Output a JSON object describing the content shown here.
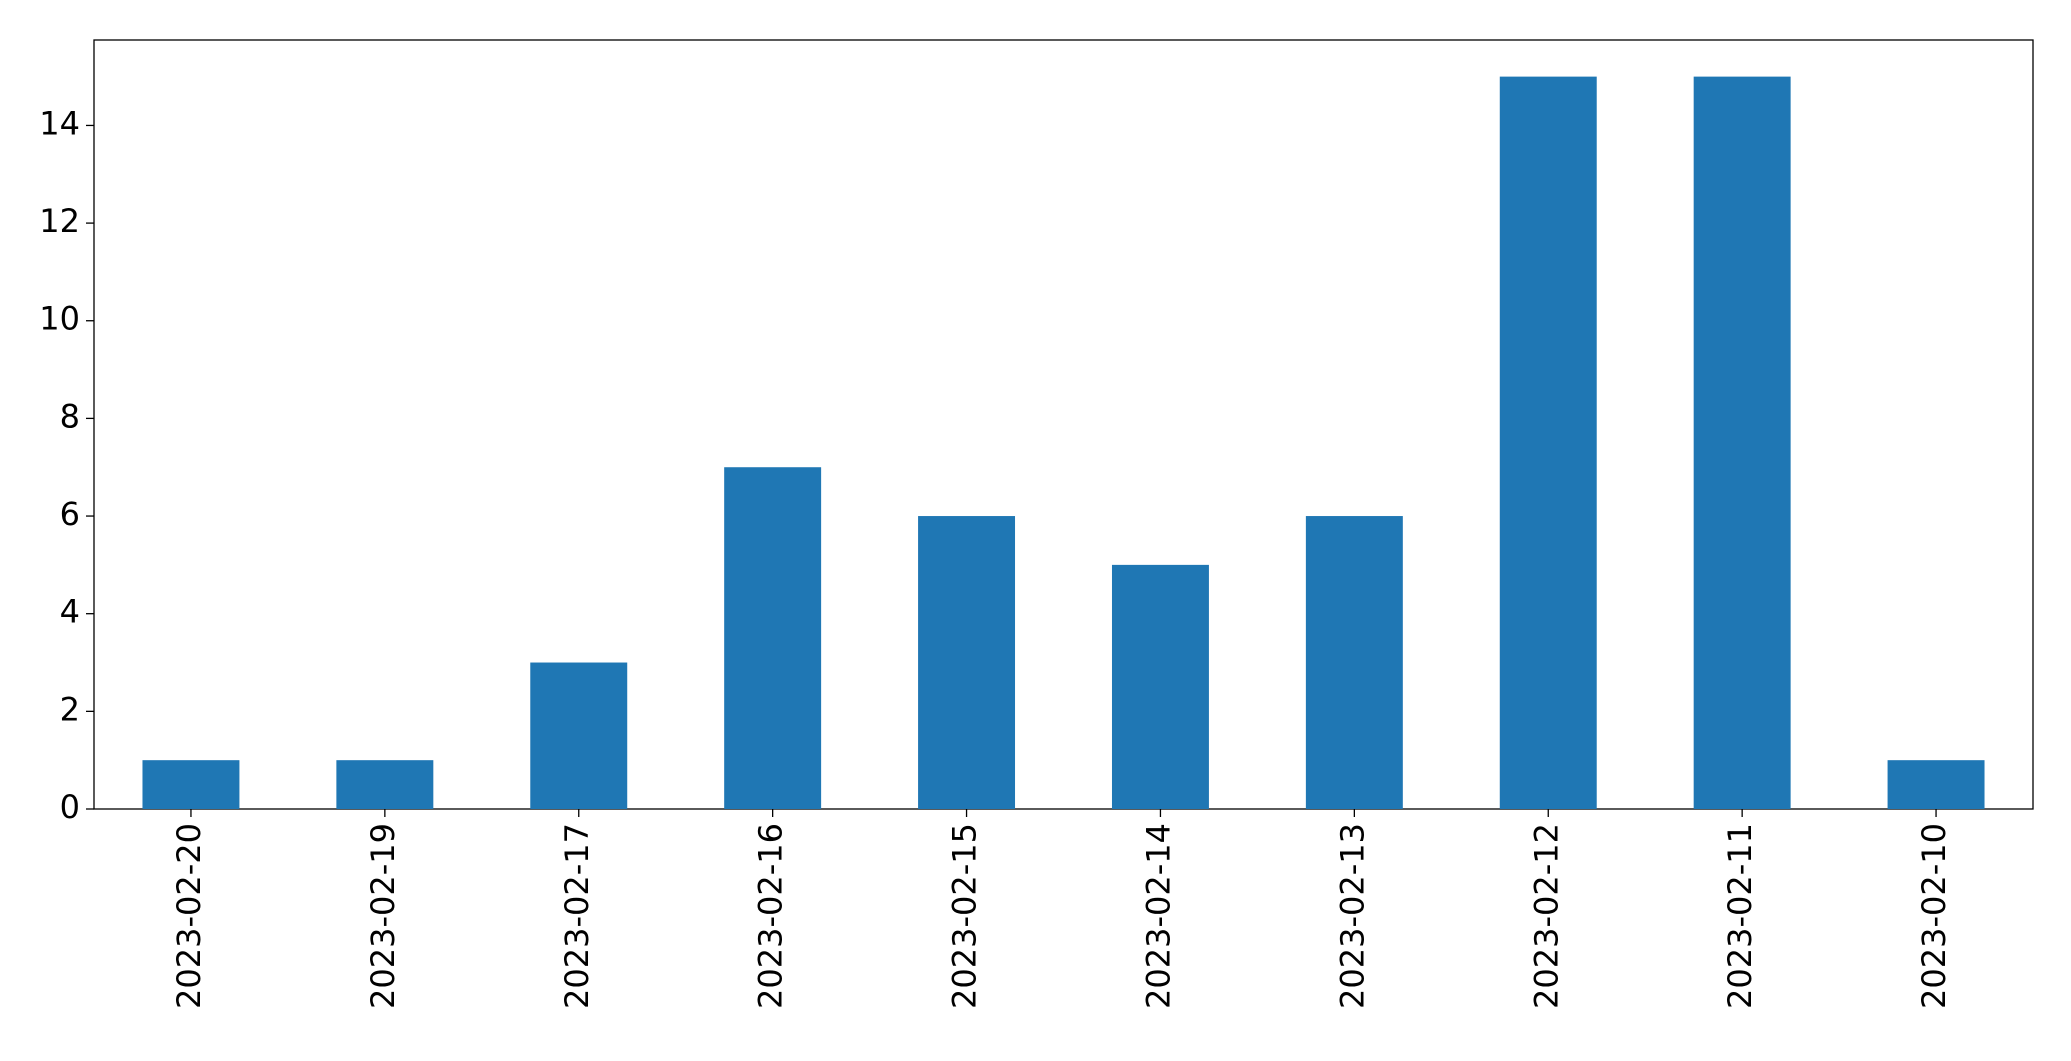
{
  "chart_data": {
    "type": "bar",
    "categories": [
      "2023-02-20",
      "2023-02-19",
      "2023-02-17",
      "2023-02-16",
      "2023-02-15",
      "2023-02-14",
      "2023-02-13",
      "2023-02-12",
      "2023-02-11",
      "2023-02-10"
    ],
    "values": [
      1,
      1,
      3,
      7,
      6,
      5,
      6,
      15,
      15,
      1
    ],
    "color": "#1f77b4",
    "ylim": [
      0,
      15.75
    ],
    "yticks": [
      0,
      2,
      4,
      6,
      8,
      10,
      12,
      14
    ],
    "grid": false
  }
}
